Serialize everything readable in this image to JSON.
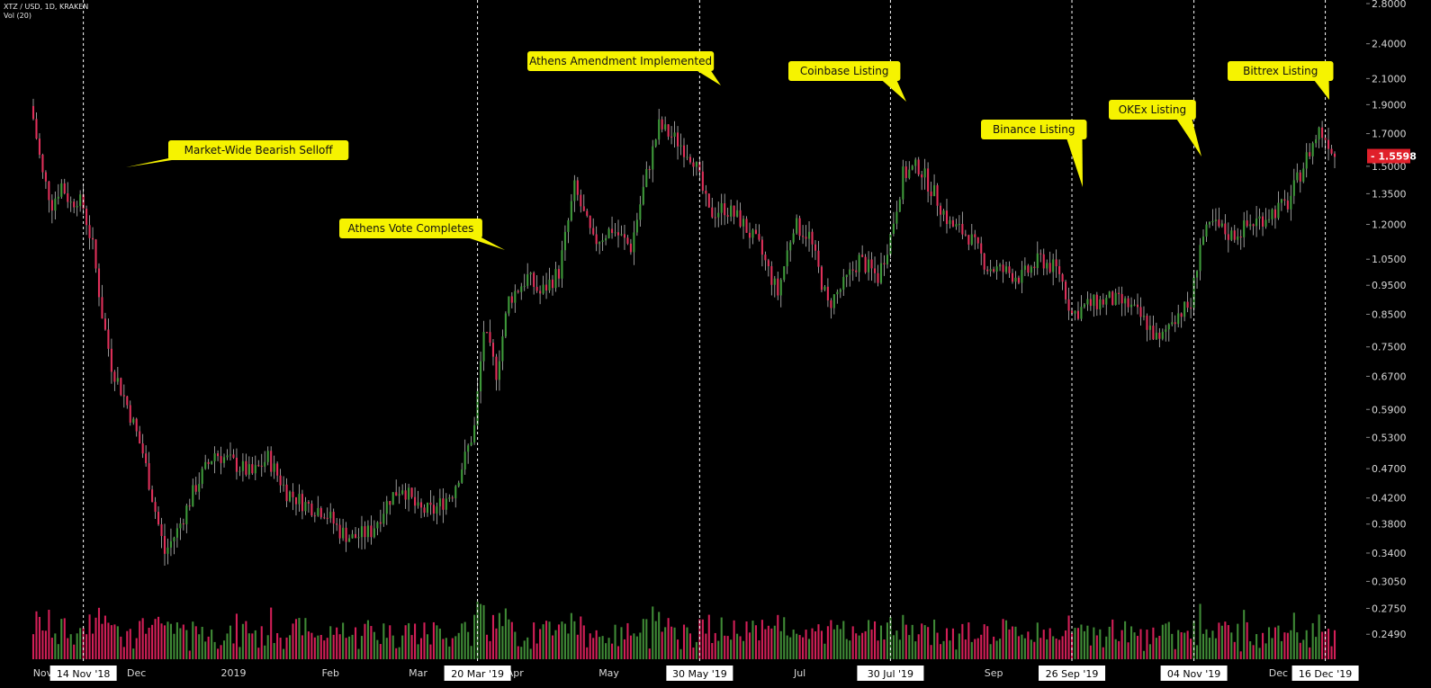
{
  "header": {
    "symbol": "XTZ / USD, 1D, KRAKEN",
    "volume_label": "Vol (20)"
  },
  "colors": {
    "background": "#000000",
    "up": "#3e9a3a",
    "down": "#e0305a",
    "callout": "#f6f300",
    "event_line": "#ffffff",
    "last_price_tag": "#e0202a",
    "volume_up": "#3f8a36",
    "volume_down": "#d21f57"
  },
  "chart_data": {
    "type": "candlestick",
    "title": "",
    "yscale": "log",
    "ylim": [
      0.235,
      2.8
    ],
    "y_ticks": [
      "2.8000",
      "2.4000",
      "2.1000",
      "1.9000",
      "1.7000",
      "1.5000",
      "1.3500",
      "1.2000",
      "1.0500",
      "0.9500",
      "0.8500",
      "0.7500",
      "0.6700",
      "0.5900",
      "0.5300",
      "0.4700",
      "0.4200",
      "0.3800",
      "0.3400",
      "0.3050",
      "0.2750",
      "0.2490"
    ],
    "last_price": "1.5598",
    "x_ticks": [
      {
        "label": "Nov",
        "date": "2018-11-01"
      },
      {
        "label": "Dec",
        "date": "2018-12-01"
      },
      {
        "label": "2019",
        "date": "2019-01-01"
      },
      {
        "label": "Feb",
        "date": "2019-02-01"
      },
      {
        "label": "Mar",
        "date": "2019-03-01"
      },
      {
        "label": "Apr",
        "date": "2019-04-01"
      },
      {
        "label": "May",
        "date": "2019-05-01"
      },
      {
        "label": "Jul",
        "date": "2019-07-01"
      },
      {
        "label": "Sep",
        "date": "2019-09-01"
      },
      {
        "label": "Dec",
        "date": "2019-12-01"
      }
    ],
    "events": [
      {
        "date_label": "14 Nov '18",
        "date": "2018-11-14",
        "note": "Market-Wide Bearish Selloff"
      },
      {
        "date_label": "20 Mar '19",
        "date": "2019-03-20",
        "note": "Athens Vote Completes"
      },
      {
        "date_label": "30 May '19",
        "date": "2019-05-30",
        "note": "Athens Amendment Implemented"
      },
      {
        "date_label": "30 Jul '19",
        "date": "2019-07-30",
        "note": "Coinbase Listing"
      },
      {
        "date_label": "26 Sep '19",
        "date": "2019-09-26",
        "note": "Binance Listing"
      },
      {
        "date_label": "04 Nov '19",
        "date": "2019-11-04",
        "note": "OKEx Listing"
      },
      {
        "date_label": "16 Dec '19",
        "date": "2019-12-16",
        "note": "Bittrex Listing"
      }
    ],
    "price_path": [
      [
        "2018-10-29",
        1.8
      ],
      [
        "2018-11-01",
        1.45
      ],
      [
        "2018-11-04",
        1.3
      ],
      [
        "2018-11-07",
        1.4
      ],
      [
        "2018-11-10",
        1.3
      ],
      [
        "2018-11-12",
        1.33
      ],
      [
        "2018-11-14",
        1.28
      ],
      [
        "2018-11-17",
        1.1
      ],
      [
        "2018-11-20",
        0.85
      ],
      [
        "2018-11-23",
        0.7
      ],
      [
        "2018-11-28",
        0.6
      ],
      [
        "2018-12-03",
        0.5
      ],
      [
        "2018-12-07",
        0.4
      ],
      [
        "2018-12-10",
        0.34
      ],
      [
        "2018-12-14",
        0.37
      ],
      [
        "2018-12-20",
        0.44
      ],
      [
        "2018-12-26",
        0.5
      ],
      [
        "2019-01-01",
        0.48
      ],
      [
        "2019-01-07",
        0.46
      ],
      [
        "2019-01-12",
        0.49
      ],
      [
        "2019-01-18",
        0.43
      ],
      [
        "2019-01-24",
        0.41
      ],
      [
        "2019-01-30",
        0.4
      ],
      [
        "2019-02-04",
        0.37
      ],
      [
        "2019-02-08",
        0.36
      ],
      [
        "2019-02-14",
        0.37
      ],
      [
        "2019-02-20",
        0.42
      ],
      [
        "2019-02-24",
        0.44
      ],
      [
        "2019-03-01",
        0.4
      ],
      [
        "2019-03-06",
        0.4
      ],
      [
        "2019-03-12",
        0.43
      ],
      [
        "2019-03-16",
        0.49
      ],
      [
        "2019-03-19",
        0.55
      ],
      [
        "2019-03-22",
        0.8
      ],
      [
        "2019-03-26",
        0.68
      ],
      [
        "2019-03-30",
        0.9
      ],
      [
        "2019-04-05",
        0.98
      ],
      [
        "2019-04-09",
        0.92
      ],
      [
        "2019-04-15",
        1.0
      ],
      [
        "2019-04-20",
        1.38
      ],
      [
        "2019-04-26",
        1.12
      ],
      [
        "2019-05-02",
        1.18
      ],
      [
        "2019-05-08",
        1.1
      ],
      [
        "2019-05-13",
        1.45
      ],
      [
        "2019-05-17",
        1.75
      ],
      [
        "2019-05-23",
        1.65
      ],
      [
        "2019-05-28",
        1.55
      ],
      [
        "2019-06-02",
        1.25
      ],
      [
        "2019-06-07",
        1.28
      ],
      [
        "2019-06-12",
        1.22
      ],
      [
        "2019-06-18",
        1.1
      ],
      [
        "2019-06-24",
        0.92
      ],
      [
        "2019-06-29",
        1.2
      ],
      [
        "2019-07-04",
        1.15
      ],
      [
        "2019-07-10",
        0.88
      ],
      [
        "2019-07-15",
        0.95
      ],
      [
        "2019-07-20",
        1.05
      ],
      [
        "2019-07-26",
        0.98
      ],
      [
        "2019-07-30",
        1.15
      ],
      [
        "2019-08-03",
        1.45
      ],
      [
        "2019-08-08",
        1.5
      ],
      [
        "2019-08-13",
        1.35
      ],
      [
        "2019-08-18",
        1.2
      ],
      [
        "2019-08-24",
        1.15
      ],
      [
        "2019-08-30",
        1.02
      ],
      [
        "2019-09-05",
        1.0
      ],
      [
        "2019-09-10",
        0.98
      ],
      [
        "2019-09-16",
        1.05
      ],
      [
        "2019-09-22",
        1.0
      ],
      [
        "2019-09-26",
        0.85
      ],
      [
        "2019-10-01",
        0.88
      ],
      [
        "2019-10-08",
        0.9
      ],
      [
        "2019-10-14",
        0.88
      ],
      [
        "2019-10-20",
        0.82
      ],
      [
        "2019-10-24",
        0.76
      ],
      [
        "2019-10-28",
        0.84
      ],
      [
        "2019-11-03",
        0.88
      ],
      [
        "2019-11-06",
        1.12
      ],
      [
        "2019-11-10",
        1.2
      ],
      [
        "2019-11-16",
        1.15
      ],
      [
        "2019-11-22",
        1.2
      ],
      [
        "2019-11-28",
        1.25
      ],
      [
        "2019-12-04",
        1.3
      ],
      [
        "2019-12-10",
        1.55
      ],
      [
        "2019-12-14",
        1.72
      ],
      [
        "2019-12-17",
        1.65
      ],
      [
        "2019-12-19",
        1.56
      ]
    ]
  }
}
